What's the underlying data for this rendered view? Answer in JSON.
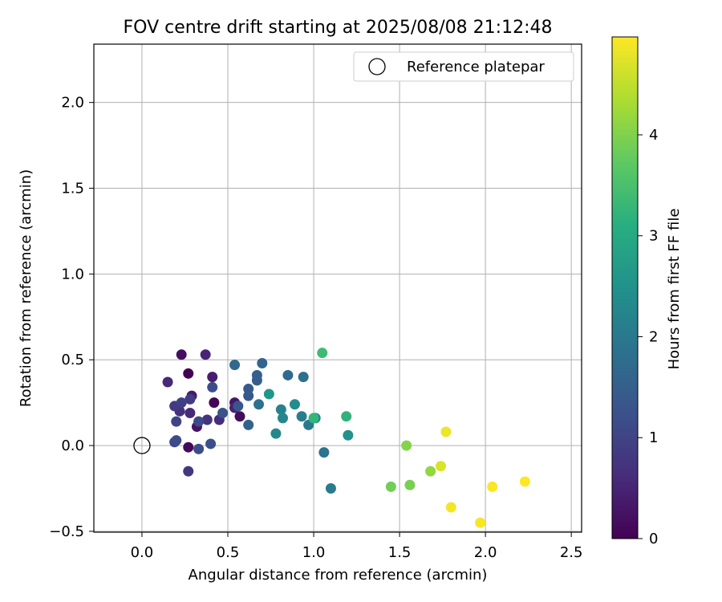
{
  "chart_data": {
    "type": "scatter",
    "title": "FOV centre drift starting at 2025/08/08 21:12:48",
    "xlabel": "Angular distance from reference (arcmin)",
    "ylabel": "Rotation from reference (arcmin)",
    "xlim": [
      -0.28,
      2.56
    ],
    "ylim": [
      -0.505,
      2.34
    ],
    "xticks": [
      0.0,
      0.5,
      1.0,
      1.5,
      2.0,
      2.5
    ],
    "yticks": [
      -0.5,
      0.0,
      0.5,
      1.0,
      1.5,
      2.0
    ],
    "xtick_labels": [
      "0.0",
      "0.5",
      "1.0",
      "1.5",
      "2.0",
      "2.5"
    ],
    "ytick_labels": [
      "−0.5",
      "0.0",
      "0.5",
      "1.0",
      "1.5",
      "2.0"
    ],
    "grid": true,
    "legend": {
      "position": "top-right",
      "entries": [
        "Reference platepar"
      ]
    },
    "reference_point": {
      "x": 0.0,
      "y": 0.0,
      "label": "Reference platepar"
    },
    "colorbar": {
      "label": "Hours from first FF file",
      "colormap": "viridis",
      "range": [
        0,
        4.97
      ],
      "ticks": [
        0,
        1,
        2,
        3,
        4
      ],
      "tick_labels": [
        "0",
        "1",
        "2",
        "3",
        "4"
      ]
    },
    "series": [
      {
        "color_value_label": "Hours from first FF file",
        "points": [
          {
            "x": 0.27,
            "y": 0.42,
            "h": 0.0
          },
          {
            "x": 0.42,
            "y": 0.25,
            "h": 0.05
          },
          {
            "x": 0.27,
            "y": -0.01,
            "h": 0.1
          },
          {
            "x": 0.57,
            "y": 0.17,
            "h": 0.15
          },
          {
            "x": 0.23,
            "y": 0.53,
            "h": 0.2
          },
          {
            "x": 0.32,
            "y": 0.11,
            "h": 0.25
          },
          {
            "x": 0.54,
            "y": 0.25,
            "h": 0.3
          },
          {
            "x": 0.29,
            "y": 0.29,
            "h": 0.35
          },
          {
            "x": 0.41,
            "y": 0.4,
            "h": 0.4
          },
          {
            "x": 0.54,
            "y": 0.22,
            "h": 0.45
          },
          {
            "x": 0.37,
            "y": 0.53,
            "h": 0.5
          },
          {
            "x": 0.15,
            "y": 0.37,
            "h": 0.55
          },
          {
            "x": 0.28,
            "y": 0.19,
            "h": 0.6
          },
          {
            "x": 0.45,
            "y": 0.15,
            "h": 0.65
          },
          {
            "x": 0.22,
            "y": 0.2,
            "h": 0.7
          },
          {
            "x": 0.38,
            "y": 0.15,
            "h": 0.75
          },
          {
            "x": 0.27,
            "y": -0.15,
            "h": 0.8
          },
          {
            "x": 0.19,
            "y": 0.23,
            "h": 0.85
          },
          {
            "x": 0.28,
            "y": 0.27,
            "h": 0.9
          },
          {
            "x": 0.23,
            "y": 0.25,
            "h": 0.95
          },
          {
            "x": 0.2,
            "y": 0.14,
            "h": 1.0
          },
          {
            "x": 0.19,
            "y": 0.02,
            "h": 1.05
          },
          {
            "x": 0.33,
            "y": 0.14,
            "h": 1.1
          },
          {
            "x": 0.2,
            "y": 0.03,
            "h": 1.12
          },
          {
            "x": 0.33,
            "y": -0.02,
            "h": 1.15
          },
          {
            "x": 0.41,
            "y": 0.34,
            "h": 1.18
          },
          {
            "x": 0.4,
            "y": 0.01,
            "h": 1.2
          },
          {
            "x": 0.47,
            "y": 0.19,
            "h": 1.25
          },
          {
            "x": 0.56,
            "y": 0.23,
            "h": 1.3
          },
          {
            "x": 0.62,
            "y": 0.29,
            "h": 1.35
          },
          {
            "x": 0.62,
            "y": 0.33,
            "h": 1.4
          },
          {
            "x": 0.67,
            "y": 0.38,
            "h": 1.45
          },
          {
            "x": 0.67,
            "y": 0.41,
            "h": 1.5
          },
          {
            "x": 0.62,
            "y": 0.12,
            "h": 1.55
          },
          {
            "x": 0.7,
            "y": 0.48,
            "h": 1.6
          },
          {
            "x": 0.54,
            "y": 0.47,
            "h": 1.65
          },
          {
            "x": 0.85,
            "y": 0.41,
            "h": 1.7
          },
          {
            "x": 0.94,
            "y": 0.4,
            "h": 1.8
          },
          {
            "x": 0.68,
            "y": 0.24,
            "h": 1.85
          },
          {
            "x": 1.06,
            "y": -0.04,
            "h": 1.9
          },
          {
            "x": 0.97,
            "y": 0.12,
            "h": 2.0
          },
          {
            "x": 1.1,
            "y": -0.25,
            "h": 2.05
          },
          {
            "x": 0.93,
            "y": 0.17,
            "h": 2.1
          },
          {
            "x": 0.81,
            "y": 0.21,
            "h": 2.2
          },
          {
            "x": 1.01,
            "y": 0.16,
            "h": 2.25
          },
          {
            "x": 0.82,
            "y": 0.16,
            "h": 2.3
          },
          {
            "x": 0.78,
            "y": 0.07,
            "h": 2.35
          },
          {
            "x": 0.89,
            "y": 0.24,
            "h": 2.4
          },
          {
            "x": 1.2,
            "y": 0.06,
            "h": 2.5
          },
          {
            "x": 0.74,
            "y": 0.3,
            "h": 2.6
          },
          {
            "x": 1.19,
            "y": 0.17,
            "h": 3.2
          },
          {
            "x": 1.0,
            "y": 0.16,
            "h": 3.3
          },
          {
            "x": 1.05,
            "y": 0.54,
            "h": 3.4
          },
          {
            "x": 1.45,
            "y": -0.24,
            "h": 3.9
          },
          {
            "x": 1.56,
            "y": -0.23,
            "h": 3.95
          },
          {
            "x": 1.54,
            "y": 0.0,
            "h": 4.05
          },
          {
            "x": 1.68,
            "y": -0.15,
            "h": 4.15
          },
          {
            "x": 1.74,
            "y": -0.12,
            "h": 4.7
          },
          {
            "x": 1.77,
            "y": 0.08,
            "h": 4.85
          },
          {
            "x": 1.8,
            "y": -0.36,
            "h": 4.9
          },
          {
            "x": 1.97,
            "y": -0.45,
            "h": 4.92
          },
          {
            "x": 2.04,
            "y": -0.24,
            "h": 4.94
          },
          {
            "x": 2.23,
            "y": -0.21,
            "h": 4.96
          }
        ]
      }
    ]
  }
}
